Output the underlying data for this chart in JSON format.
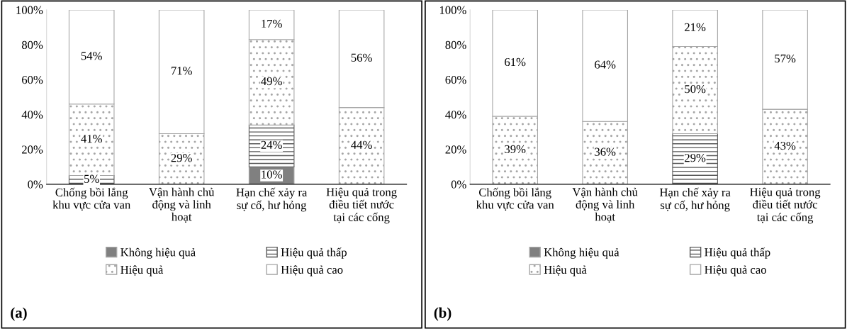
{
  "chart_data": [
    {
      "type": "bar",
      "stacked": true,
      "categories": [
        "Chống bồi lắng khu vực cửa van",
        "Vận hành chủ động và linh hoạt",
        "Hạn chế xảy ra sự cố, hư hỏng",
        "Hiệu quả trong điều tiết nước tại các cống"
      ],
      "series": [
        {
          "name": "Không hiệu quả",
          "color": "#808080",
          "values": [
            0,
            0,
            10,
            0
          ],
          "value_labels": [
            null,
            null,
            "10%",
            null
          ]
        },
        {
          "name": "Hiệu quả thấp",
          "color": "#595959",
          "values": [
            5,
            0,
            24,
            0
          ],
          "value_labels": [
            "5%",
            null,
            "24%",
            null
          ]
        },
        {
          "name": "Hiệu quả",
          "color": "#a6a6a6",
          "values": [
            41,
            29,
            49,
            44
          ],
          "value_labels": [
            "41%",
            "29%",
            "49%",
            "44%"
          ]
        },
        {
          "name": "Hiệu quả cao",
          "color": "#ffffff",
          "values": [
            54,
            71,
            17,
            56
          ],
          "value_labels": [
            "54%",
            "71%",
            "17%",
            "56%"
          ]
        }
      ],
      "ylim": [
        0,
        100
      ],
      "yticks": [
        {
          "value": 0,
          "label": "0%"
        },
        {
          "value": 20,
          "label": "20%"
        },
        {
          "value": 40,
          "label": "40%"
        },
        {
          "value": 60,
          "label": "60%"
        },
        {
          "value": 80,
          "label": "80%"
        },
        {
          "value": 100,
          "label": "100%"
        }
      ],
      "grid": false,
      "legend": "bottom",
      "annotations": [
        "(a)"
      ]
    },
    {
      "type": "bar",
      "stacked": true,
      "categories": [
        "Chống bồi lắng khu vực cửa van",
        "Vận hành chủ động và linh hoạt",
        "Hạn chế xảy ra sự cố, hư hỏng",
        "Hiệu quả trong điều tiết nước tại các cống"
      ],
      "series": [
        {
          "name": "Không hiệu quả",
          "color": "#808080",
          "values": [
            0,
            0,
            0,
            0
          ],
          "value_labels": [
            null,
            null,
            null,
            null
          ]
        },
        {
          "name": "Hiệu quả thấp",
          "color": "#595959",
          "values": [
            0,
            0,
            29,
            0
          ],
          "value_labels": [
            null,
            null,
            "29%",
            null
          ]
        },
        {
          "name": "Hiệu quả",
          "color": "#a6a6a6",
          "values": [
            39,
            36,
            50,
            43
          ],
          "value_labels": [
            "39%",
            "36%",
            "50%",
            "43%"
          ]
        },
        {
          "name": "Hiệu quả cao",
          "color": "#ffffff",
          "values": [
            61,
            64,
            21,
            57
          ],
          "value_labels": [
            "61%",
            "64%",
            "21%",
            "57%"
          ]
        }
      ],
      "ylim": [
        0,
        100
      ],
      "yticks": [
        {
          "value": 0,
          "label": "0%"
        },
        {
          "value": 20,
          "label": "20%"
        },
        {
          "value": 40,
          "label": "40%"
        },
        {
          "value": 60,
          "label": "60%"
        },
        {
          "value": 80,
          "label": "80%"
        },
        {
          "value": 100,
          "label": "100%"
        }
      ],
      "grid": false,
      "legend": "bottom",
      "annotations": [
        "(b)"
      ]
    }
  ]
}
